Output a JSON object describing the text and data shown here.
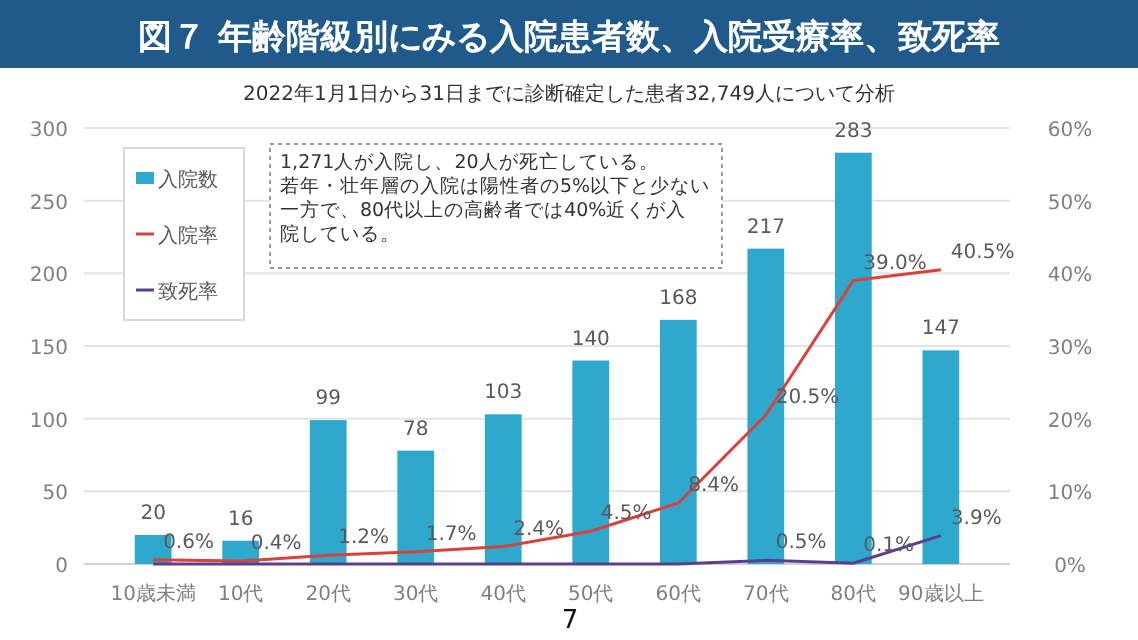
{
  "chart_data": {
    "type": "bar",
    "title": "図７ 年齢階級別にみる入院患者数、入院受療率、致死率",
    "subtitle": "2022年1月1日から31日までに診断確定した患者32,749人について分析",
    "categories": [
      "10歳未満",
      "10代",
      "20代",
      "30代",
      "40代",
      "50代",
      "60代",
      "70代",
      "80代",
      "90歳以上"
    ],
    "series": [
      {
        "name": "入院数",
        "color": "#2ea8cc",
        "values": [
          20,
          16,
          99,
          78,
          103,
          140,
          168,
          217,
          283,
          147
        ],
        "value_labels": [
          "20",
          "16",
          "99",
          "78",
          "103",
          "140",
          "168",
          "217",
          "283",
          "147"
        ]
      },
      {
        "name": "入院率",
        "type": "line",
        "axis": "y2",
        "color": "#d9413a",
        "values": [
          0.6,
          0.4,
          1.2,
          1.7,
          2.4,
          4.5,
          8.4,
          20.5,
          39.0,
          40.5
        ],
        "value_labels": [
          "0.6%",
          "0.4%",
          "1.2%",
          "1.7%",
          "2.4%",
          "4.5%",
          "8.4%",
          "20.5%",
          "39.0%",
          "40.5%"
        ]
      },
      {
        "name": "致死率",
        "type": "line",
        "axis": "y2",
        "color": "#5b3f8c",
        "values": [
          0,
          0,
          0,
          0,
          0,
          0,
          0,
          0.5,
          0.1,
          3.9
        ],
        "value_labels": [
          null,
          null,
          null,
          null,
          null,
          null,
          null,
          "0.5%",
          "0.1%",
          "3.9%"
        ]
      }
    ],
    "ylim": [
      0,
      300
    ],
    "yticks": [
      0,
      50,
      100,
      150,
      200,
      250,
      300
    ],
    "y2lim": [
      0,
      60
    ],
    "y2ticks": [
      {
        "value": 0,
        "label": "0%"
      },
      {
        "value": 10,
        "label": "10%"
      },
      {
        "value": 20,
        "label": "20%"
      },
      {
        "value": 30,
        "label": "30%"
      },
      {
        "value": 40,
        "label": "40%"
      },
      {
        "value": 50,
        "label": "50%"
      },
      {
        "value": 60,
        "label": "60%"
      }
    ],
    "grid": "y",
    "legend": "top left",
    "marker": "none",
    "line_style": "solid",
    "annotations": [
      "1,271人が入院し、20人が死亡している。若年・壮年層の入院は陽性者の5%以下と少ない一方で、80代以上の高齢者では40%近くが入院している。",
      "7"
    ]
  }
}
